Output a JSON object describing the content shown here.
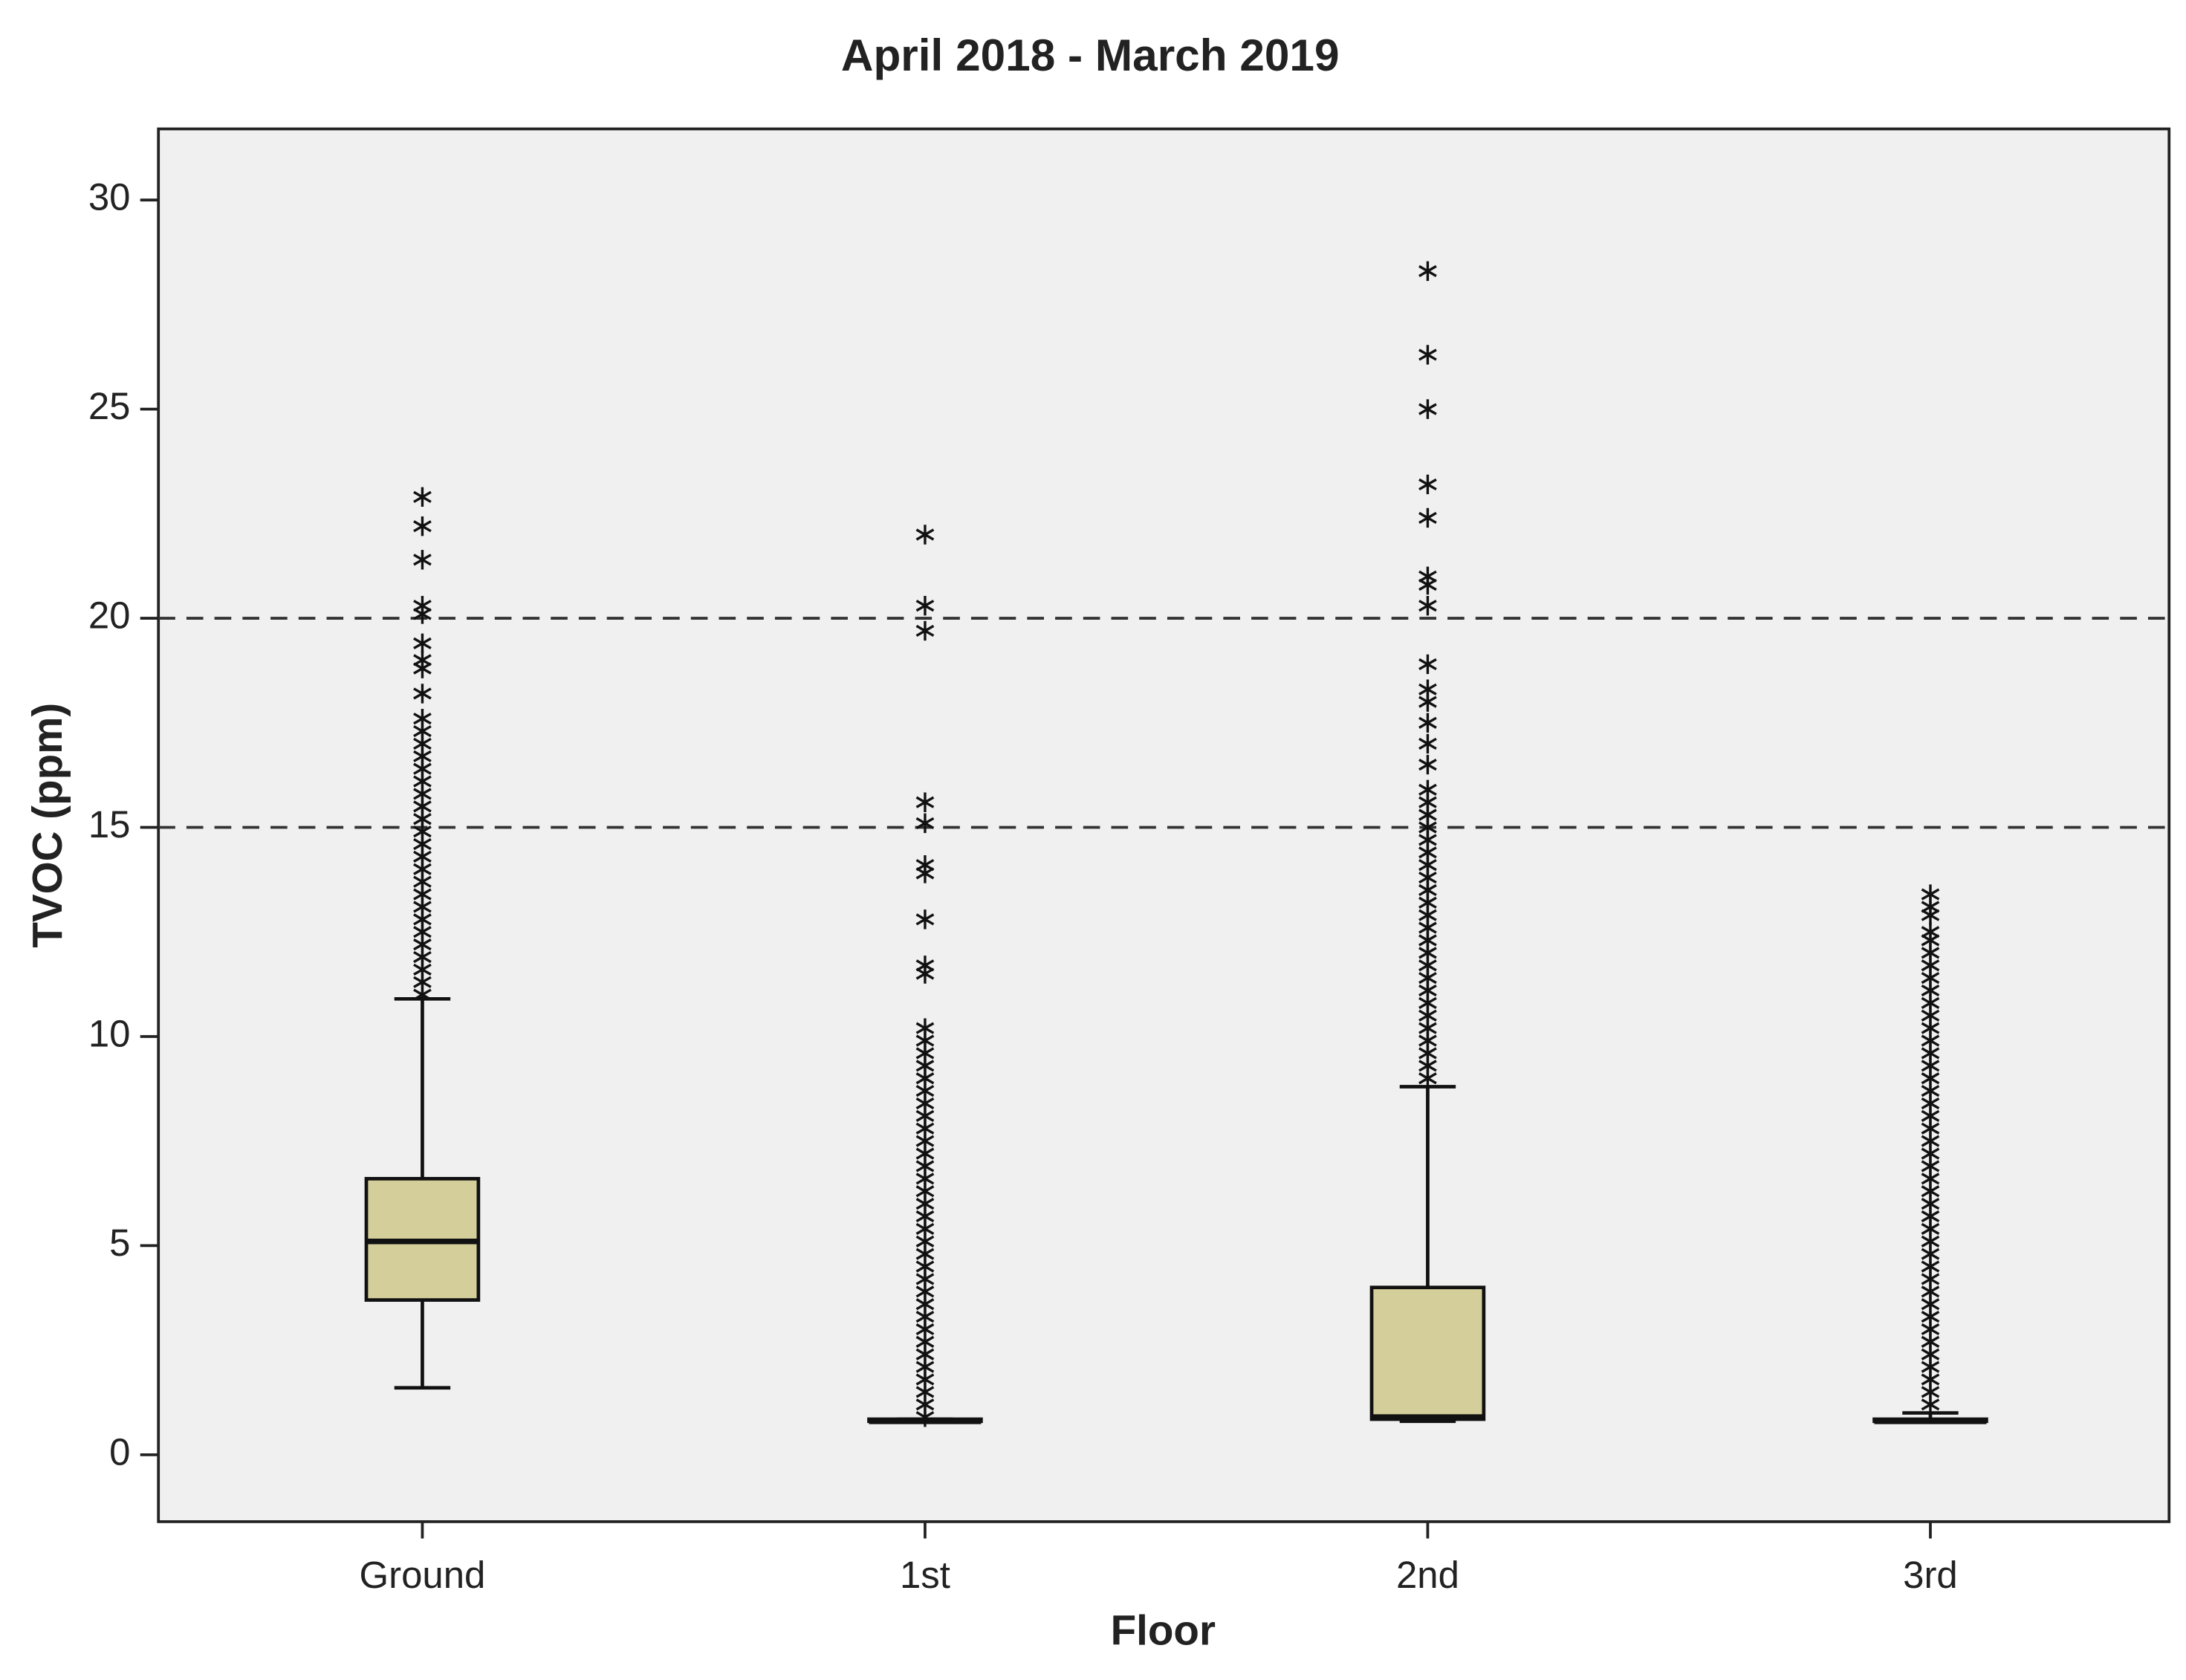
{
  "chart_data": {
    "type": "box",
    "title": "April 2018 - March 2019",
    "x_label": "Floor",
    "y_label": "TVOC (ppm)",
    "categories": [
      "Ground",
      "1st",
      "2nd",
      "3rd"
    ],
    "color": "#d4cf9a",
    "ylim": [
      -1.6,
      31.7
    ],
    "yticks": [
      0,
      5,
      10,
      15,
      20,
      25,
      30
    ],
    "reference_lines": [
      15,
      20
    ],
    "boxes": [
      {
        "whislo": 1.6,
        "q1": 3.7,
        "med": 5.1,
        "q3": 6.6,
        "whishi": 10.9,
        "fliers": [
          11.0,
          11.3,
          11.6,
          11.9,
          12.2,
          12.5,
          12.8,
          13.1,
          13.4,
          13.7,
          14.0,
          14.3,
          14.6,
          14.9,
          15.2,
          15.5,
          15.8,
          16.1,
          16.4,
          16.7,
          17.0,
          17.3,
          17.6,
          18.2,
          18.8,
          19.0,
          19.4,
          20.1,
          20.3,
          21.4,
          22.2,
          22.9
        ]
      },
      {
        "whislo": 0.8,
        "q1": 0.8,
        "med": 0.8,
        "q3": 0.85,
        "whishi": 0.85,
        "fliers": [
          0.9,
          1.2,
          1.5,
          1.8,
          2.1,
          2.4,
          2.7,
          3.0,
          3.3,
          3.6,
          3.9,
          4.2,
          4.5,
          4.8,
          5.1,
          5.4,
          5.7,
          6.0,
          6.3,
          6.6,
          6.9,
          7.2,
          7.5,
          7.8,
          8.1,
          8.4,
          8.7,
          9.0,
          9.3,
          9.6,
          9.9,
          10.2,
          11.5,
          11.7,
          12.8,
          13.9,
          14.1,
          15.1,
          15.6,
          19.7,
          20.3,
          22.0
        ]
      },
      {
        "whislo": 0.8,
        "q1": 0.85,
        "med": 0.9,
        "q3": 4.0,
        "whishi": 8.8,
        "fliers": [
          9.0,
          9.3,
          9.6,
          9.9,
          10.2,
          10.5,
          10.8,
          11.1,
          11.4,
          11.7,
          12.0,
          12.3,
          12.6,
          12.9,
          13.2,
          13.5,
          13.8,
          14.1,
          14.4,
          14.7,
          15.0,
          15.3,
          15.6,
          15.9,
          16.5,
          17.0,
          17.5,
          18.0,
          18.3,
          18.9,
          20.3,
          20.8,
          21.0,
          22.4,
          23.2,
          25.0,
          26.3,
          28.3
        ]
      },
      {
        "whislo": 0.8,
        "q1": 0.8,
        "med": 0.8,
        "q3": 0.85,
        "whishi": 1.0,
        "fliers": [
          1.2,
          1.5,
          1.8,
          2.1,
          2.4,
          2.7,
          3.0,
          3.3,
          3.6,
          3.9,
          4.2,
          4.5,
          4.8,
          5.1,
          5.4,
          5.7,
          6.0,
          6.3,
          6.6,
          6.9,
          7.2,
          7.5,
          7.8,
          8.1,
          8.4,
          8.7,
          9.0,
          9.3,
          9.6,
          9.9,
          10.2,
          10.5,
          10.8,
          11.1,
          11.4,
          11.7,
          12.0,
          12.3,
          12.5,
          12.9,
          13.1,
          13.4
        ]
      }
    ]
  }
}
